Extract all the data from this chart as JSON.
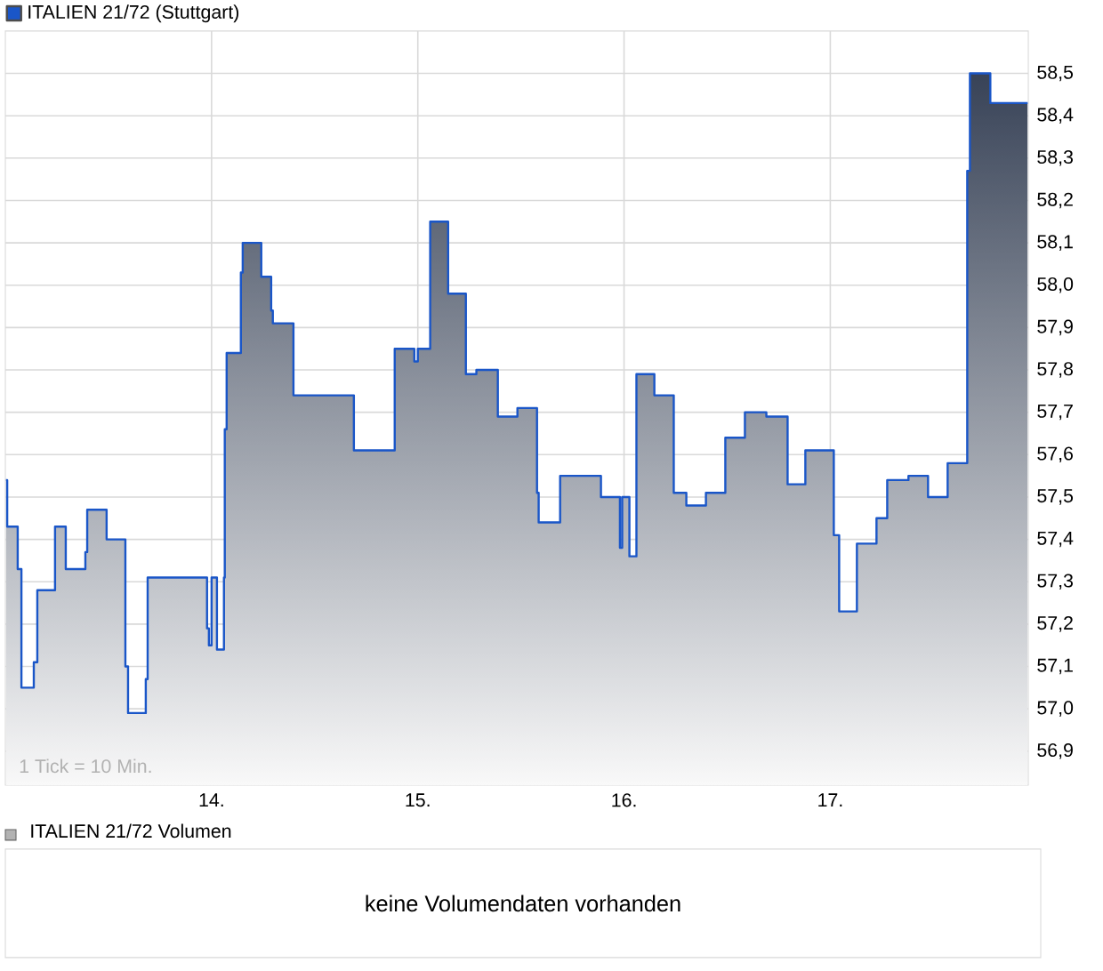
{
  "chart_data": [
    {
      "type": "step",
      "x": [
        13.003,
        13.009,
        13.06,
        13.078,
        13.138,
        13.155,
        13.241,
        13.293,
        13.388,
        13.397,
        13.491,
        13.582,
        13.595,
        13.681,
        13.69,
        13.978,
        13.987,
        14.0,
        14.026,
        14.06,
        14.064,
        14.073,
        14.142,
        14.151,
        14.241,
        14.289,
        14.297,
        14.397,
        14.69,
        14.888,
        14.983,
        15.0,
        15.06,
        15.147,
        15.233,
        15.284,
        15.388,
        15.483,
        15.578,
        15.586,
        15.69,
        15.888,
        15.98,
        15.991,
        16.026,
        16.06,
        16.147,
        16.241,
        16.302,
        16.397,
        16.491,
        16.586,
        16.69,
        16.793,
        16.879,
        17.017,
        17.043,
        17.129,
        17.224,
        17.276,
        17.379,
        17.474,
        17.569,
        17.664,
        17.677,
        17.776,
        17.957
      ],
      "series": [
        {
          "name": "ITALIEN 21/72 (Stuttgart)",
          "color": "#1a56c8",
          "values": [
            57.54,
            57.43,
            57.33,
            57.05,
            57.11,
            57.28,
            57.43,
            57.33,
            57.37,
            57.47,
            57.4,
            57.1,
            56.99,
            57.07,
            57.31,
            57.19,
            57.15,
            57.31,
            57.14,
            57.31,
            57.66,
            57.84,
            58.03,
            58.1,
            58.02,
            57.94,
            57.91,
            57.74,
            57.61,
            57.85,
            57.82,
            57.85,
            58.15,
            57.98,
            57.79,
            57.8,
            57.69,
            57.71,
            57.51,
            57.44,
            57.55,
            57.5,
            57.38,
            57.5,
            57.36,
            57.79,
            57.74,
            57.51,
            57.48,
            57.51,
            57.64,
            57.7,
            57.69,
            57.53,
            57.61,
            57.41,
            57.23,
            57.39,
            57.45,
            57.54,
            57.55,
            57.5,
            57.58,
            58.27,
            58.5,
            58.43,
            58.43
          ]
        }
      ],
      "xlim": [
        13.0,
        17.96
      ],
      "ylim": [
        56.82,
        58.6
      ],
      "xticks": [
        {
          "value": 14,
          "label": "14."
        },
        {
          "value": 15,
          "label": "15."
        },
        {
          "value": 16,
          "label": "16."
        },
        {
          "value": 17,
          "label": "17."
        }
      ],
      "yticks": [
        {
          "value": 56.9,
          "label": "56,9"
        },
        {
          "value": 57.0,
          "label": "57,0"
        },
        {
          "value": 57.1,
          "label": "57,1"
        },
        {
          "value": 57.2,
          "label": "57,2"
        },
        {
          "value": 57.3,
          "label": "57,3"
        },
        {
          "value": 57.4,
          "label": "57,4"
        },
        {
          "value": 57.5,
          "label": "57,5"
        },
        {
          "value": 57.6,
          "label": "57,6"
        },
        {
          "value": 57.7,
          "label": "57,7"
        },
        {
          "value": 57.8,
          "label": "57,8"
        },
        {
          "value": 57.9,
          "label": "57,9"
        },
        {
          "value": 58.0,
          "label": "58,0"
        },
        {
          "value": 58.1,
          "label": "58,1"
        },
        {
          "value": 58.2,
          "label": "58,2"
        },
        {
          "value": 58.3,
          "label": "58,3"
        },
        {
          "value": 58.4,
          "label": "58,4"
        },
        {
          "value": 58.5,
          "label": "58,5"
        }
      ],
      "grid": true,
      "legend": "top left",
      "annotations": [
        "1 Tick = 10 Min."
      ]
    },
    {
      "type": "other",
      "title": "ITALIEN 21/72 Volumen",
      "annotations": [
        "keine Volumendaten vorhanden"
      ]
    }
  ]
}
